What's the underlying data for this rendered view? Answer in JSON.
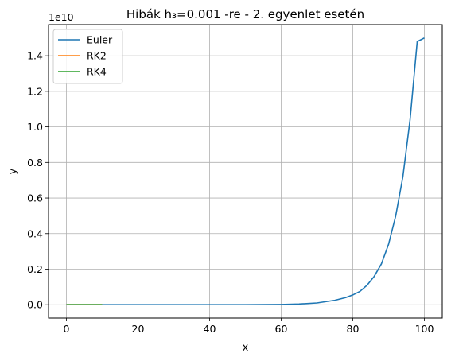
{
  "chart_data": {
    "type": "line",
    "title": "Hibák h₃=0.001 -re - 2. egyenlet esetén",
    "xlabel": "x",
    "ylabel": "y",
    "y_scale_label": "1e10",
    "xlim": [
      -5,
      105
    ],
    "ylim": [
      -0.075,
      1.575
    ],
    "x_ticks": [
      0,
      20,
      40,
      60,
      80,
      100
    ],
    "x_tick_labels": [
      "0",
      "20",
      "40",
      "60",
      "80",
      "100"
    ],
    "y_ticks": [
      0.0,
      0.2,
      0.4,
      0.6,
      0.8,
      1.0,
      1.2,
      1.4
    ],
    "y_tick_labels": [
      "0.0",
      "0.2",
      "0.4",
      "0.6",
      "0.8",
      "1.0",
      "1.2",
      "1.4"
    ],
    "grid": true,
    "legend_position": "top-left",
    "series": [
      {
        "name": "Euler",
        "color": "#1f77b4",
        "x": [
          0,
          10,
          20,
          30,
          40,
          50,
          60,
          65,
          70,
          75,
          78,
          80,
          82,
          84,
          86,
          88,
          90,
          92,
          94,
          96,
          98,
          100
        ],
        "y": [
          0,
          0,
          0,
          0,
          0,
          0.0001,
          0.0015,
          0.004,
          0.01,
          0.025,
          0.04,
          0.055,
          0.075,
          0.11,
          0.16,
          0.23,
          0.34,
          0.5,
          0.72,
          1.04,
          1.48,
          1.5
        ]
      },
      {
        "name": "RK2",
        "color": "#ff7f0e",
        "x": [
          0,
          10
        ],
        "y": [
          0,
          0
        ]
      },
      {
        "name": "RK4",
        "color": "#2ca02c",
        "x": [
          0,
          10
        ],
        "y": [
          0,
          0
        ]
      }
    ]
  }
}
